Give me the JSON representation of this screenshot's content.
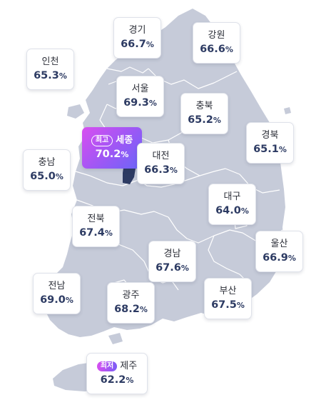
{
  "colors": {
    "land": "#c6cbd9",
    "border": "#ffffff",
    "sejong": "#2d3b63",
    "value_text": "#2d3b63"
  },
  "regions": {
    "gyeonggi": {
      "name": "경기",
      "value": "66.7",
      "unit": "%"
    },
    "gangwon": {
      "name": "강원",
      "value": "66.6",
      "unit": "%"
    },
    "incheon": {
      "name": "인천",
      "value": "65.3",
      "unit": "%"
    },
    "seoul": {
      "name": "서울",
      "value": "69.3",
      "unit": "%"
    },
    "chungbuk": {
      "name": "충북",
      "value": "65.2",
      "unit": "%"
    },
    "sejong": {
      "name": "세종",
      "value": "70.2",
      "unit": "%",
      "badge": "최고"
    },
    "gyeongbuk": {
      "name": "경북",
      "value": "65.1",
      "unit": "%"
    },
    "daejeon": {
      "name": "대전",
      "value": "66.3",
      "unit": "%"
    },
    "chungnam": {
      "name": "충남",
      "value": "65.0",
      "unit": "%"
    },
    "daegu": {
      "name": "대구",
      "value": "64.0",
      "unit": "%"
    },
    "jeonbuk": {
      "name": "전북",
      "value": "67.4",
      "unit": "%"
    },
    "ulsan": {
      "name": "울산",
      "value": "66.9",
      "unit": "%"
    },
    "gyeongnam": {
      "name": "경남",
      "value": "67.6",
      "unit": "%"
    },
    "jeonnam": {
      "name": "전남",
      "value": "69.0",
      "unit": "%"
    },
    "gwangju": {
      "name": "광주",
      "value": "68.2",
      "unit": "%"
    },
    "busan": {
      "name": "부산",
      "value": "67.5",
      "unit": "%"
    },
    "jeju": {
      "name": "제주",
      "value": "62.2",
      "unit": "%",
      "badge": "최저"
    }
  }
}
